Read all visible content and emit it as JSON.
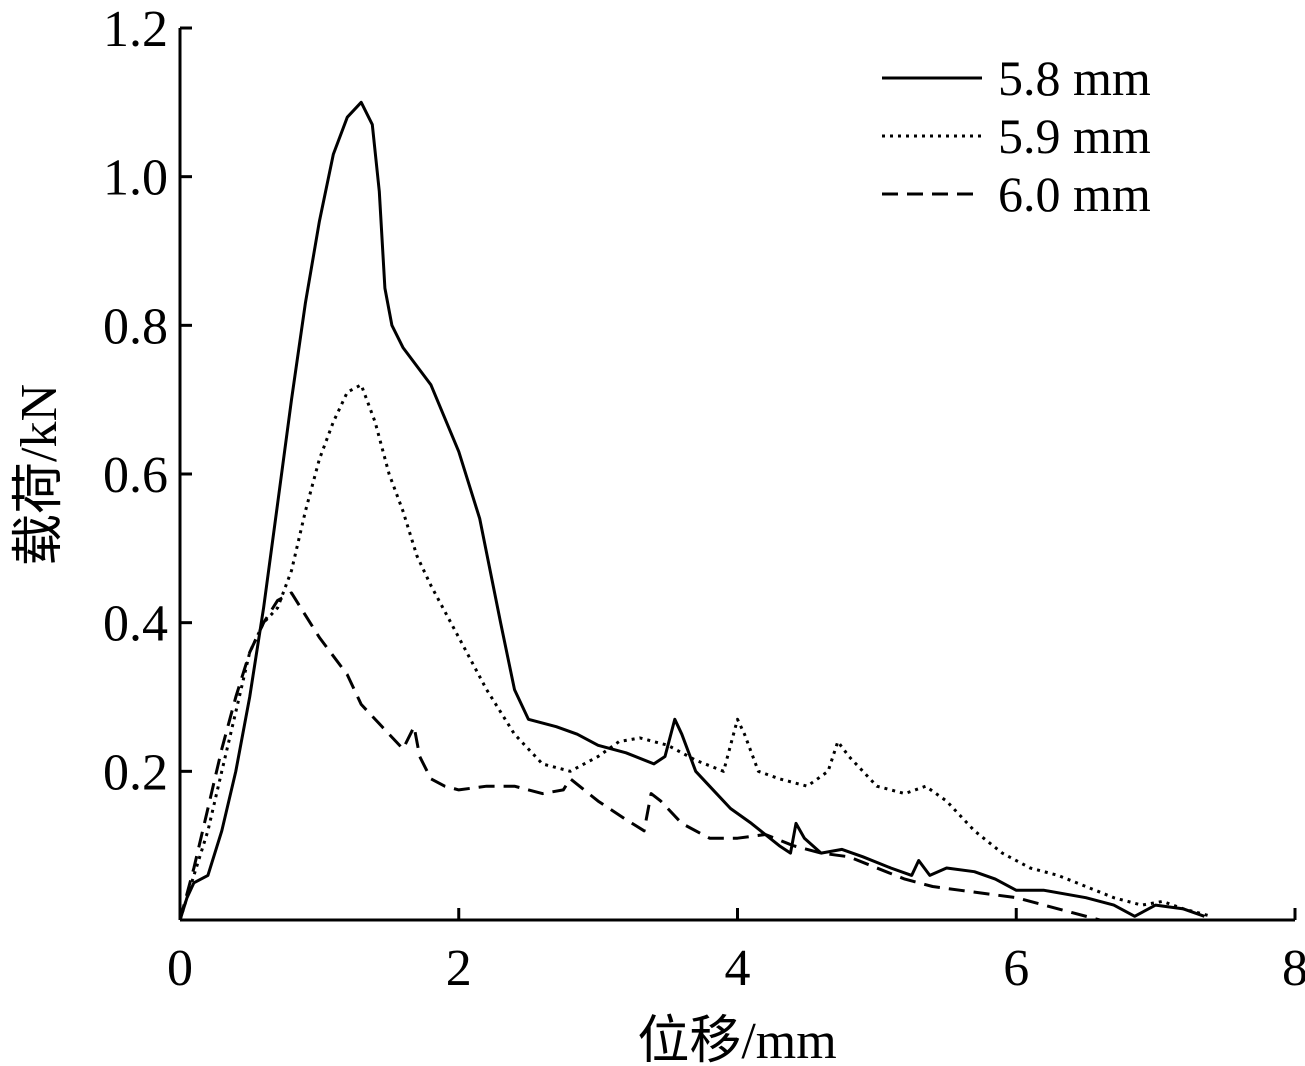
{
  "chart_data": {
    "type": "line",
    "title": "",
    "xlabel": "位移/mm",
    "ylabel": "载荷/kN",
    "xlim": [
      0,
      8
    ],
    "ylim": [
      0,
      1.2
    ],
    "x_ticks": [
      "0",
      "2",
      "4",
      "6",
      "8"
    ],
    "y_ticks": [
      "0.2",
      "0.4",
      "0.6",
      "0.8",
      "1.0",
      "1.2"
    ],
    "grid": false,
    "legend_position": "top-right",
    "series": [
      {
        "name": "5.8 mm",
        "style": "solid",
        "points": [
          [
            0,
            0
          ],
          [
            0.05,
            0.03
          ],
          [
            0.1,
            0.05
          ],
          [
            0.2,
            0.06
          ],
          [
            0.3,
            0.12
          ],
          [
            0.4,
            0.2
          ],
          [
            0.5,
            0.3
          ],
          [
            0.6,
            0.42
          ],
          [
            0.7,
            0.56
          ],
          [
            0.8,
            0.7
          ],
          [
            0.9,
            0.83
          ],
          [
            1.0,
            0.94
          ],
          [
            1.1,
            1.03
          ],
          [
            1.2,
            1.08
          ],
          [
            1.3,
            1.1
          ],
          [
            1.38,
            1.07
          ],
          [
            1.43,
            0.98
          ],
          [
            1.47,
            0.85
          ],
          [
            1.52,
            0.8
          ],
          [
            1.6,
            0.77
          ],
          [
            1.8,
            0.72
          ],
          [
            2.0,
            0.63
          ],
          [
            2.15,
            0.54
          ],
          [
            2.3,
            0.4
          ],
          [
            2.4,
            0.31
          ],
          [
            2.5,
            0.27
          ],
          [
            2.7,
            0.26
          ],
          [
            2.85,
            0.25
          ],
          [
            3.0,
            0.235
          ],
          [
            3.2,
            0.225
          ],
          [
            3.4,
            0.21
          ],
          [
            3.48,
            0.22
          ],
          [
            3.55,
            0.27
          ],
          [
            3.6,
            0.25
          ],
          [
            3.7,
            0.2
          ],
          [
            3.8,
            0.18
          ],
          [
            3.95,
            0.15
          ],
          [
            4.1,
            0.13
          ],
          [
            4.3,
            0.1
          ],
          [
            4.38,
            0.09
          ],
          [
            4.42,
            0.13
          ],
          [
            4.48,
            0.11
          ],
          [
            4.6,
            0.09
          ],
          [
            4.75,
            0.095
          ],
          [
            4.9,
            0.085
          ],
          [
            5.1,
            0.07
          ],
          [
            5.25,
            0.06
          ],
          [
            5.3,
            0.08
          ],
          [
            5.38,
            0.06
          ],
          [
            5.5,
            0.07
          ],
          [
            5.7,
            0.065
          ],
          [
            5.85,
            0.055
          ],
          [
            6.0,
            0.04
          ],
          [
            6.2,
            0.04
          ],
          [
            6.5,
            0.03
          ],
          [
            6.7,
            0.02
          ],
          [
            6.85,
            0.005
          ],
          [
            7.0,
            0.02
          ],
          [
            7.2,
            0.015
          ],
          [
            7.35,
            0.005
          ]
        ]
      },
      {
        "name": "5.9 mm",
        "style": "dotted",
        "points": [
          [
            0,
            0
          ],
          [
            0.1,
            0.06
          ],
          [
            0.2,
            0.12
          ],
          [
            0.3,
            0.2
          ],
          [
            0.4,
            0.28
          ],
          [
            0.5,
            0.36
          ],
          [
            0.6,
            0.4
          ],
          [
            0.7,
            0.42
          ],
          [
            0.8,
            0.47
          ],
          [
            0.9,
            0.55
          ],
          [
            1.0,
            0.62
          ],
          [
            1.1,
            0.67
          ],
          [
            1.2,
            0.71
          ],
          [
            1.3,
            0.72
          ],
          [
            1.4,
            0.67
          ],
          [
            1.5,
            0.6
          ],
          [
            1.6,
            0.55
          ],
          [
            1.7,
            0.49
          ],
          [
            1.8,
            0.45
          ],
          [
            2.0,
            0.38
          ],
          [
            2.2,
            0.31
          ],
          [
            2.4,
            0.25
          ],
          [
            2.6,
            0.21
          ],
          [
            2.8,
            0.2
          ],
          [
            3.0,
            0.22
          ],
          [
            3.15,
            0.24
          ],
          [
            3.3,
            0.245
          ],
          [
            3.5,
            0.235
          ],
          [
            3.7,
            0.215
          ],
          [
            3.9,
            0.2
          ],
          [
            4.0,
            0.27
          ],
          [
            4.05,
            0.25
          ],
          [
            4.15,
            0.2
          ],
          [
            4.3,
            0.19
          ],
          [
            4.5,
            0.18
          ],
          [
            4.65,
            0.2
          ],
          [
            4.72,
            0.24
          ],
          [
            4.8,
            0.22
          ],
          [
            5.0,
            0.18
          ],
          [
            5.2,
            0.17
          ],
          [
            5.35,
            0.18
          ],
          [
            5.5,
            0.16
          ],
          [
            5.7,
            0.12
          ],
          [
            5.9,
            0.09
          ],
          [
            6.1,
            0.07
          ],
          [
            6.3,
            0.06
          ],
          [
            6.5,
            0.045
          ],
          [
            6.7,
            0.03
          ],
          [
            6.9,
            0.02
          ],
          [
            7.05,
            0.025
          ],
          [
            7.2,
            0.015
          ],
          [
            7.4,
            0.005
          ]
        ]
      },
      {
        "name": "6.0 mm",
        "style": "dashed",
        "points": [
          [
            0,
            0
          ],
          [
            0.1,
            0.07
          ],
          [
            0.2,
            0.15
          ],
          [
            0.3,
            0.23
          ],
          [
            0.4,
            0.3
          ],
          [
            0.5,
            0.36
          ],
          [
            0.6,
            0.4
          ],
          [
            0.7,
            0.43
          ],
          [
            0.8,
            0.44
          ],
          [
            0.9,
            0.41
          ],
          [
            1.0,
            0.38
          ],
          [
            1.2,
            0.33
          ],
          [
            1.3,
            0.29
          ],
          [
            1.5,
            0.25
          ],
          [
            1.6,
            0.23
          ],
          [
            1.68,
            0.26
          ],
          [
            1.72,
            0.22
          ],
          [
            1.8,
            0.19
          ],
          [
            1.9,
            0.18
          ],
          [
            2.0,
            0.175
          ],
          [
            2.2,
            0.18
          ],
          [
            2.4,
            0.18
          ],
          [
            2.6,
            0.17
          ],
          [
            2.75,
            0.175
          ],
          [
            2.8,
            0.19
          ],
          [
            3.0,
            0.16
          ],
          [
            3.2,
            0.135
          ],
          [
            3.33,
            0.12
          ],
          [
            3.38,
            0.17
          ],
          [
            3.45,
            0.16
          ],
          [
            3.6,
            0.13
          ],
          [
            3.8,
            0.11
          ],
          [
            4.0,
            0.11
          ],
          [
            4.2,
            0.115
          ],
          [
            4.4,
            0.1
          ],
          [
            4.6,
            0.09
          ],
          [
            4.8,
            0.085
          ],
          [
            5.0,
            0.07
          ],
          [
            5.2,
            0.055
          ],
          [
            5.4,
            0.045
          ],
          [
            5.6,
            0.04
          ],
          [
            5.8,
            0.035
          ],
          [
            6.0,
            0.03
          ],
          [
            6.2,
            0.02
          ],
          [
            6.4,
            0.01
          ],
          [
            6.6,
            0.0
          ]
        ]
      }
    ]
  }
}
